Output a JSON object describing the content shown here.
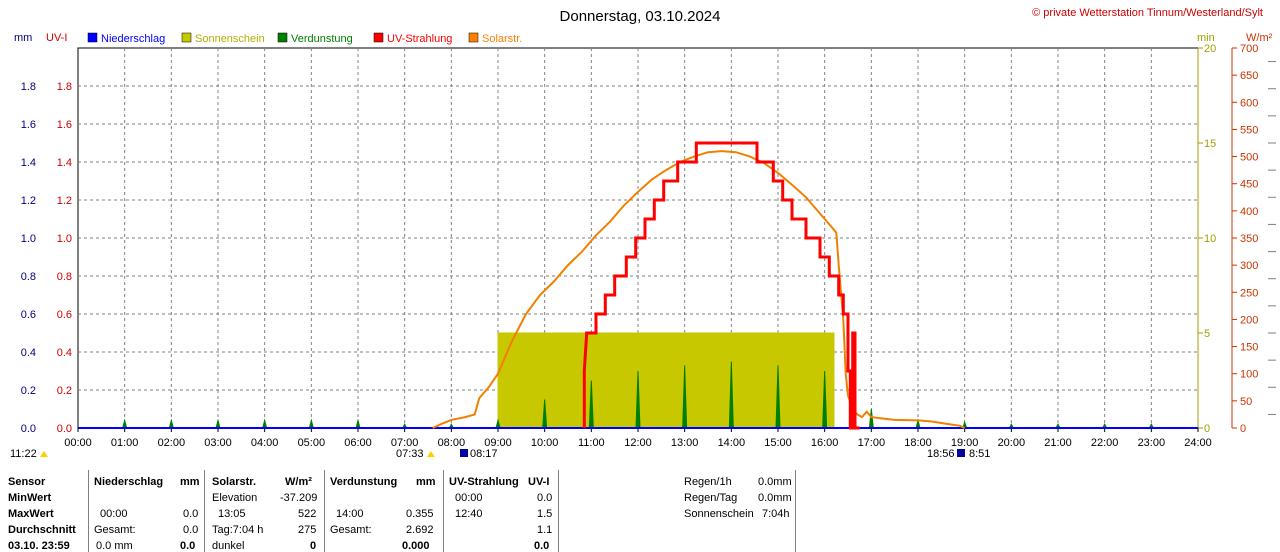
{
  "title": "Donnerstag, 03.10.2024",
  "copyright": "© private Wetterstation Tinnum/Westerland/Sylt",
  "units_left": [
    "mm",
    "UV-I"
  ],
  "units_right": [
    "min",
    "W/m²"
  ],
  "legend": [
    {
      "label": "Niederschlag",
      "color": "#0000ff"
    },
    {
      "label": "Sonnenschein",
      "color": "#c8c800"
    },
    {
      "label": "Verdunstung",
      "color": "#008000"
    },
    {
      "label": "UV-Strahlung",
      "color": "#ff0000"
    },
    {
      "label": "Solarstr.",
      "color": "#ff8000"
    }
  ],
  "colors": {
    "uv": "#ff0000",
    "solar": "#f08000",
    "evap": "#008000",
    "sunshine": "#c8c800",
    "rain": "#0000ff",
    "grid": "#808080"
  },
  "sun_events": {
    "current_time": "11:22",
    "sunrise": "07:33",
    "moonrise": "08:17",
    "sunset": "18:56",
    "moonset": "8:51"
  },
  "chart_data": {
    "type": "line",
    "x_ticks": [
      "00:00",
      "01:00",
      "02:00",
      "03:00",
      "04:00",
      "05:00",
      "06:00",
      "07:00",
      "08:00",
      "09:00",
      "10:00",
      "11:00",
      "12:00",
      "13:00",
      "14:00",
      "15:00",
      "16:00",
      "17:00",
      "18:00",
      "19:00",
      "20:00",
      "21:00",
      "22:00",
      "23:00",
      "24:00"
    ],
    "y_left_mm_ticks": [
      "0.0",
      "0.2",
      "0.4",
      "0.6",
      "0.8",
      "1.0",
      "1.2",
      "1.4",
      "1.6",
      "1.8"
    ],
    "y_left_uv_ticks": [
      "0.0",
      "0.2",
      "0.4",
      "0.6",
      "0.8",
      "1.0",
      "1.2",
      "1.4",
      "1.6",
      "1.8"
    ],
    "y_right_min_ticks": [
      "0",
      "5",
      "10",
      "15",
      "20"
    ],
    "y_right_wm2_ticks": [
      "0",
      "50",
      "100",
      "150",
      "200",
      "250",
      "300",
      "350",
      "400",
      "450",
      "500",
      "550",
      "600",
      "650",
      "700"
    ],
    "ylim_left": [
      0,
      2.0
    ],
    "ylim_min": [
      0,
      20
    ],
    "ylim_wm2": [
      0,
      700
    ],
    "grid": true,
    "series": [
      {
        "name": "UV-Strahlung",
        "type": "step",
        "axis": "left",
        "points": [
          [
            10.85,
            0
          ],
          [
            10.85,
            0.3
          ],
          [
            10.9,
            0.5
          ],
          [
            11.1,
            0.5
          ],
          [
            11.1,
            0.6
          ],
          [
            11.3,
            0.6
          ],
          [
            11.3,
            0.7
          ],
          [
            11.5,
            0.7
          ],
          [
            11.5,
            0.8
          ],
          [
            11.75,
            0.8
          ],
          [
            11.75,
            0.9
          ],
          [
            11.95,
            0.9
          ],
          [
            11.95,
            1.0
          ],
          [
            12.15,
            1.0
          ],
          [
            12.15,
            1.1
          ],
          [
            12.35,
            1.1
          ],
          [
            12.35,
            1.2
          ],
          [
            12.55,
            1.2
          ],
          [
            12.55,
            1.3
          ],
          [
            12.85,
            1.3
          ],
          [
            12.85,
            1.4
          ],
          [
            13.25,
            1.4
          ],
          [
            13.25,
            1.5
          ],
          [
            14.55,
            1.5
          ],
          [
            14.55,
            1.4
          ],
          [
            14.9,
            1.4
          ],
          [
            14.9,
            1.3
          ],
          [
            15.1,
            1.3
          ],
          [
            15.1,
            1.2
          ],
          [
            15.3,
            1.2
          ],
          [
            15.3,
            1.1
          ],
          [
            15.6,
            1.1
          ],
          [
            15.6,
            1.0
          ],
          [
            15.9,
            1.0
          ],
          [
            15.9,
            0.9
          ],
          [
            16.1,
            0.9
          ],
          [
            16.1,
            0.8
          ],
          [
            16.3,
            0.8
          ],
          [
            16.3,
            0.7
          ],
          [
            16.4,
            0.7
          ],
          [
            16.4,
            0.6
          ],
          [
            16.5,
            0.6
          ],
          [
            16.5,
            0.3
          ],
          [
            16.55,
            0.3
          ],
          [
            16.55,
            0.0
          ],
          [
            16.6,
            0.0
          ],
          [
            16.6,
            0.5
          ],
          [
            16.65,
            0.5
          ],
          [
            16.65,
            0.0
          ],
          [
            16.75,
            0.0
          ]
        ]
      },
      {
        "name": "Solarstr.",
        "type": "line",
        "axis": "wm2",
        "points": [
          [
            7.6,
            0
          ],
          [
            7.8,
            8
          ],
          [
            8.0,
            15
          ],
          [
            8.3,
            20
          ],
          [
            8.5,
            25
          ],
          [
            8.6,
            55
          ],
          [
            8.8,
            75
          ],
          [
            9.0,
            100
          ],
          [
            9.3,
            160
          ],
          [
            9.6,
            210
          ],
          [
            9.9,
            245
          ],
          [
            10.2,
            270
          ],
          [
            10.5,
            300
          ],
          [
            10.8,
            325
          ],
          [
            11.1,
            355
          ],
          [
            11.4,
            380
          ],
          [
            11.7,
            410
          ],
          [
            12.0,
            435
          ],
          [
            12.3,
            458
          ],
          [
            12.6,
            475
          ],
          [
            12.9,
            490
          ],
          [
            13.2,
            500
          ],
          [
            13.5,
            508
          ],
          [
            13.8,
            510
          ],
          [
            14.1,
            508
          ],
          [
            14.4,
            500
          ],
          [
            14.7,
            488
          ],
          [
            15.0,
            470
          ],
          [
            15.3,
            448
          ],
          [
            15.6,
            425
          ],
          [
            15.8,
            405
          ],
          [
            16.0,
            385
          ],
          [
            16.15,
            370
          ],
          [
            16.25,
            360
          ],
          [
            16.3,
            300
          ],
          [
            16.35,
            250
          ],
          [
            16.4,
            200
          ],
          [
            16.45,
            100
          ],
          [
            16.5,
            60
          ],
          [
            16.6,
            35
          ],
          [
            16.7,
            25
          ],
          [
            16.8,
            20
          ],
          [
            16.9,
            30
          ],
          [
            17.0,
            20
          ],
          [
            17.2,
            18
          ],
          [
            17.5,
            15
          ],
          [
            18.0,
            14
          ],
          [
            18.3,
            12
          ],
          [
            18.6,
            8
          ],
          [
            18.9,
            4
          ],
          [
            19.0,
            0
          ]
        ]
      },
      {
        "name": "Verdunstung",
        "type": "spikes",
        "axis": "left",
        "points": [
          [
            1,
            0.04
          ],
          [
            2,
            0.04
          ],
          [
            3,
            0.04
          ],
          [
            4,
            0.04
          ],
          [
            5,
            0.04
          ],
          [
            6,
            0.04
          ],
          [
            7,
            0.02
          ],
          [
            8,
            0.02
          ],
          [
            9,
            0.04
          ],
          [
            10,
            0.15
          ],
          [
            11,
            0.25
          ],
          [
            12,
            0.3
          ],
          [
            13,
            0.33
          ],
          [
            14,
            0.35
          ],
          [
            15,
            0.33
          ],
          [
            16,
            0.3
          ],
          [
            17,
            0.1
          ],
          [
            18,
            0.04
          ],
          [
            19,
            0.03
          ],
          [
            20,
            0.02
          ],
          [
            21,
            0.02
          ],
          [
            22,
            0.02
          ],
          [
            23,
            0.02
          ]
        ]
      },
      {
        "name": "Sonnenschein",
        "type": "bar",
        "axis": "min",
        "bars": [
          [
            9,
            10,
            5
          ],
          [
            10,
            11,
            5
          ],
          [
            11,
            12,
            5
          ],
          [
            12,
            13,
            5
          ],
          [
            13,
            14,
            5
          ],
          [
            14,
            15,
            5
          ],
          [
            15,
            16,
            5
          ],
          [
            16,
            16.2,
            5
          ]
        ]
      }
    ]
  },
  "table": {
    "col_sensor": {
      "header": "Sensor",
      "rows": [
        "MinWert",
        "MaxWert",
        "Durchschnitt",
        "03.10. 23:59"
      ]
    },
    "niederschlag": {
      "header": "Niederschlag",
      "unit": "mm",
      "rows": [
        [
          "",
          ""
        ],
        [
          "00:00",
          "0.0"
        ],
        [
          "Gesamt:",
          "0.0"
        ],
        [
          "0.0 mm",
          "0.0"
        ]
      ]
    },
    "solar": {
      "header": "Solarstr.",
      "unit": "W/m²",
      "rows": [
        [
          "Elevation",
          "-37.209"
        ],
        [
          "13:05",
          "522"
        ],
        [
          "Tag:7:04 h",
          "275"
        ],
        [
          "dunkel",
          "0"
        ]
      ]
    },
    "verdunstung": {
      "header": "Verdunstung",
      "unit": "mm",
      "rows": [
        [
          "",
          ""
        ],
        [
          "14:00",
          "0.355"
        ],
        [
          "Gesamt:",
          "2.692"
        ],
        [
          "",
          "0.000"
        ]
      ]
    },
    "uv": {
      "header": "UV-Strahlung",
      "unit": "UV-I",
      "rows": [
        [
          "00:00",
          "0.0"
        ],
        [
          "12:40",
          "1.5"
        ],
        [
          "",
          "1.1"
        ],
        [
          "",
          "0.0"
        ]
      ]
    },
    "extra": [
      {
        "label": "Regen/1h",
        "value": "0.0mm"
      },
      {
        "label": "Regen/Tag",
        "value": "0.0mm"
      },
      {
        "label": "Sonnenschein",
        "value": "7:04h"
      }
    ]
  }
}
